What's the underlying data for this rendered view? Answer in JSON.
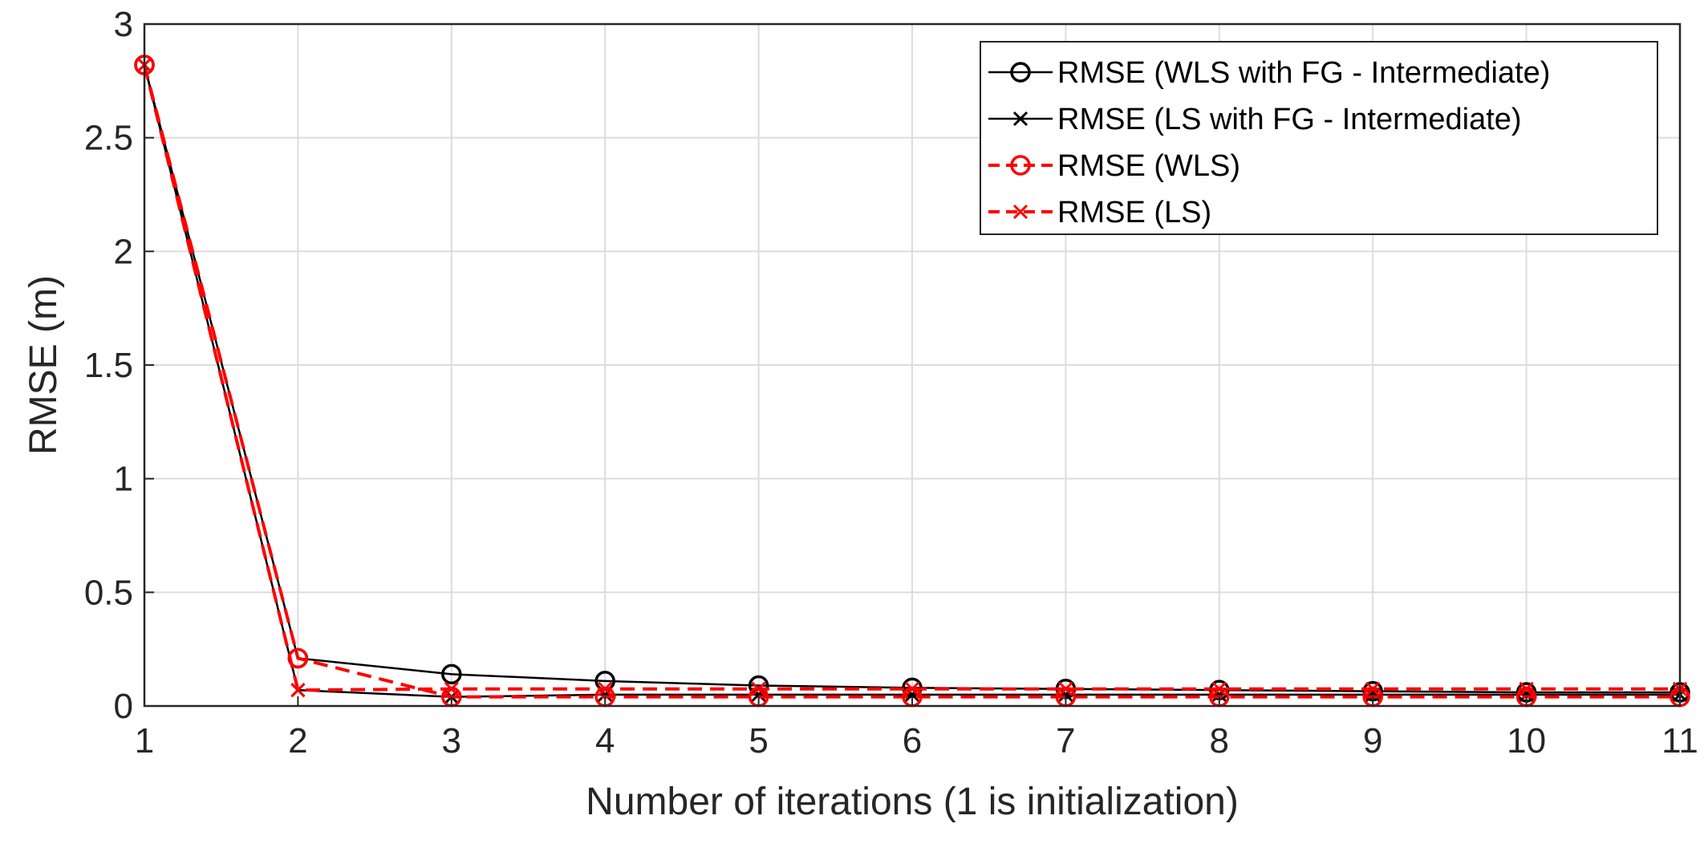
{
  "chart_data": {
    "type": "line",
    "title": "",
    "xlabel": "Number of iterations (1 is initialization)",
    "ylabel": "RMSE (m)",
    "xlim": [
      1,
      11
    ],
    "ylim": [
      0,
      3
    ],
    "x_ticks": [
      "1",
      "2",
      "3",
      "4",
      "5",
      "6",
      "7",
      "8",
      "9",
      "10",
      "11"
    ],
    "y_ticks": [
      "0",
      "0.5",
      "1",
      "1.5",
      "2",
      "2.5",
      "3"
    ],
    "grid": true,
    "legend_position": "top-right",
    "x": [
      1,
      2,
      3,
      4,
      5,
      6,
      7,
      8,
      9,
      10,
      11
    ],
    "series": [
      {
        "name": "RMSE (WLS with FG - Intermediate)",
        "color": "#000000",
        "line_style": "solid",
        "marker": "circle",
        "values": [
          2.82,
          0.21,
          0.14,
          0.11,
          0.09,
          0.08,
          0.075,
          0.07,
          0.065,
          0.06,
          0.06
        ]
      },
      {
        "name": "RMSE (LS with FG - Intermediate)",
        "color": "#000000",
        "line_style": "solid",
        "marker": "x",
        "values": [
          2.82,
          0.07,
          0.04,
          0.05,
          0.05,
          0.05,
          0.05,
          0.05,
          0.05,
          0.05,
          0.05
        ]
      },
      {
        "name": "RMSE (WLS)",
        "color": "#ff0000",
        "line_style": "dashed",
        "marker": "circle",
        "values": [
          2.82,
          0.21,
          0.04,
          0.04,
          0.04,
          0.04,
          0.04,
          0.04,
          0.04,
          0.04,
          0.04
        ]
      },
      {
        "name": "RMSE (LS)",
        "color": "#ff0000",
        "line_style": "dashed",
        "marker": "x",
        "values": [
          2.82,
          0.07,
          0.075,
          0.075,
          0.075,
          0.075,
          0.075,
          0.075,
          0.075,
          0.075,
          0.075
        ]
      }
    ]
  }
}
